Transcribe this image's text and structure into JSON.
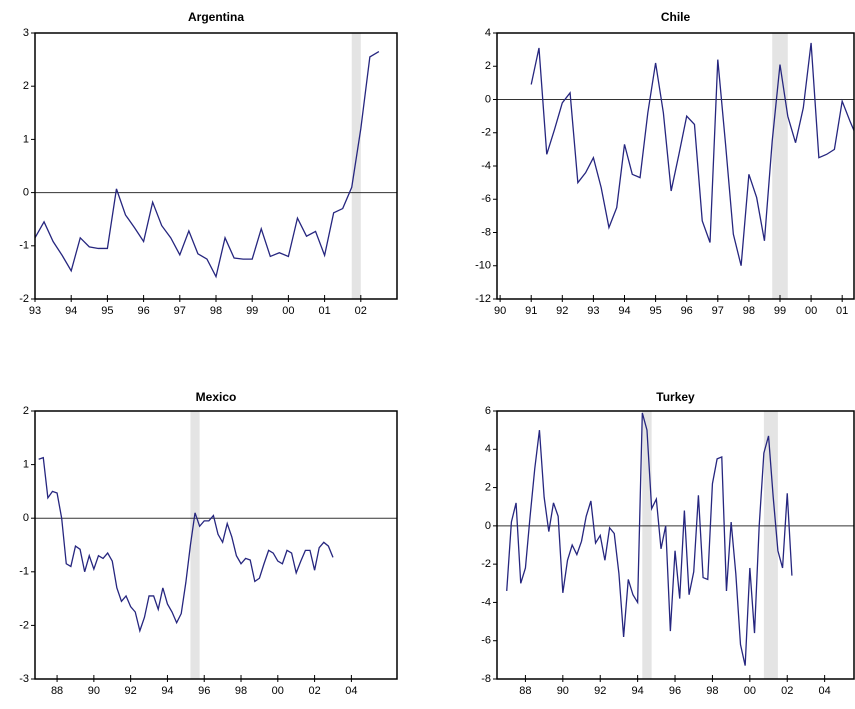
{
  "chart_data": [
    {
      "type": "line",
      "title": "Argentina",
      "color": "#26267f",
      "x": [
        1993,
        1993.25,
        1993.5,
        1993.75,
        1994,
        1994.25,
        1994.5,
        1994.75,
        1995,
        1995.25,
        1995.5,
        1995.75,
        1996,
        1996.25,
        1996.5,
        1996.75,
        1997,
        1997.25,
        1997.5,
        1997.75,
        1998,
        1998.25,
        1998.5,
        1998.75,
        1999,
        1999.25,
        1999.5,
        1999.75,
        2000,
        2000.25,
        2000.5,
        2000.75,
        2001,
        2001.25,
        2001.5,
        2001.75,
        2002,
        2002.25,
        2002.5
      ],
      "values": [
        -0.85,
        -0.55,
        -0.92,
        -1.18,
        -1.47,
        -0.85,
        -1.02,
        -1.05,
        -1.05,
        0.07,
        -0.42,
        -0.66,
        -0.92,
        -0.18,
        -0.62,
        -0.85,
        -1.17,
        -0.72,
        -1.15,
        -1.25,
        -1.58,
        -0.85,
        -1.23,
        -1.25,
        -1.25,
        -0.68,
        -1.2,
        -1.13,
        -1.2,
        -0.48,
        -0.82,
        -0.73,
        -1.18,
        -0.38,
        -0.3,
        0.1,
        1.2,
        2.55,
        2.65
      ],
      "xlim": [
        1993,
        2003
      ],
      "ylim": [
        -2,
        3
      ],
      "yticks": [
        -2,
        -1,
        0,
        1,
        2,
        3
      ],
      "xticks": [
        {
          "value": 1993,
          "label": "93"
        },
        {
          "value": 1994,
          "label": "94"
        },
        {
          "value": 1995,
          "label": "95"
        },
        {
          "value": 1996,
          "label": "96"
        },
        {
          "value": 1997,
          "label": "97"
        },
        {
          "value": 1998,
          "label": "98"
        },
        {
          "value": 1999,
          "label": "99"
        },
        {
          "value": 2000,
          "label": "00"
        },
        {
          "value": 2001,
          "label": "01"
        },
        {
          "value": 2002,
          "label": "02"
        }
      ],
      "hline": 0,
      "shaded_x": [
        [
          2001.75,
          2002.0
        ]
      ]
    },
    {
      "type": "line",
      "title": "Chile",
      "color": "#26267f",
      "x": [
        1991,
        1991.25,
        1991.5,
        1991.75,
        1992,
        1992.25,
        1992.5,
        1992.75,
        1993,
        1993.25,
        1993.5,
        1993.75,
        1994,
        1994.25,
        1994.5,
        1994.75,
        1995,
        1995.25,
        1995.5,
        1995.75,
        1996,
        1996.25,
        1996.5,
        1996.75,
        1997,
        1997.25,
        1997.5,
        1997.75,
        1998,
        1998.25,
        1998.5,
        1998.75,
        1999,
        1999.25,
        1999.5,
        1999.75,
        2000,
        2000.25,
        2000.5,
        2000.75,
        2001,
        2001.25,
        2001.5
      ],
      "values": [
        0.9,
        3.1,
        -3.3,
        -1.8,
        -0.2,
        0.4,
        -5.0,
        -4.4,
        -3.5,
        -5.3,
        -7.7,
        -6.5,
        -2.7,
        -4.5,
        -4.7,
        -0.8,
        2.2,
        -0.8,
        -5.5,
        -3.3,
        -1.0,
        -1.5,
        -7.3,
        -8.6,
        2.4,
        -2.7,
        -8.1,
        -10.0,
        -4.5,
        -5.9,
        -8.5,
        -2.5,
        2.1,
        -1.0,
        -2.6,
        -0.5,
        3.4,
        -3.5,
        -3.3,
        -3.0,
        -0.1,
        -1.3,
        -2.4
      ],
      "xlim": [
        1989.9,
        2001.38
      ],
      "ylim": [
        -12,
        4
      ],
      "yticks": [
        -12,
        -10,
        -8,
        -6,
        -4,
        -2,
        0,
        2,
        4
      ],
      "xticks": [
        {
          "value": 1990,
          "label": "90"
        },
        {
          "value": 1991,
          "label": "91"
        },
        {
          "value": 1992,
          "label": "92"
        },
        {
          "value": 1993,
          "label": "93"
        },
        {
          "value": 1994,
          "label": "94"
        },
        {
          "value": 1995,
          "label": "95"
        },
        {
          "value": 1996,
          "label": "96"
        },
        {
          "value": 1997,
          "label": "97"
        },
        {
          "value": 1998,
          "label": "98"
        },
        {
          "value": 1999,
          "label": "99"
        },
        {
          "value": 2000,
          "label": "00"
        },
        {
          "value": 2001,
          "label": "01"
        }
      ],
      "hline": 0,
      "shaded_x": [
        [
          1998.75,
          1999.25
        ]
      ]
    },
    {
      "type": "line",
      "title": "Mexico",
      "color": "#26267f",
      "x": [
        1987,
        1987.25,
        1987.5,
        1987.75,
        1988,
        1988.25,
        1988.5,
        1988.75,
        1989,
        1989.25,
        1989.5,
        1989.75,
        1990,
        1990.25,
        1990.5,
        1990.75,
        1991,
        1991.25,
        1991.5,
        1991.75,
        1992,
        1992.25,
        1992.5,
        1992.75,
        1993,
        1993.25,
        1993.5,
        1993.75,
        1994,
        1994.25,
        1994.5,
        1994.75,
        1995,
        1995.25,
        1995.5,
        1995.75,
        1996,
        1996.25,
        1996.5,
        1996.75,
        1997,
        1997.25,
        1997.5,
        1997.75,
        1998,
        1998.25,
        1998.5,
        1998.75,
        1999,
        1999.25,
        1999.5,
        1999.75,
        2000,
        2000.25,
        2000.5,
        2000.75,
        2001,
        2001.25,
        2001.5,
        2001.75,
        2002,
        2002.25,
        2002.5,
        2002.75,
        2003
      ],
      "values": [
        1.1,
        1.13,
        0.38,
        0.5,
        0.47,
        0.0,
        -0.85,
        -0.9,
        -0.52,
        -0.58,
        -1.0,
        -0.7,
        -0.95,
        -0.7,
        -0.75,
        -0.65,
        -0.8,
        -1.3,
        -1.55,
        -1.45,
        -1.65,
        -1.75,
        -2.1,
        -1.85,
        -1.45,
        -1.45,
        -1.7,
        -1.3,
        -1.6,
        -1.75,
        -1.95,
        -1.78,
        -1.2,
        -0.5,
        0.1,
        -0.15,
        -0.05,
        -0.05,
        0.05,
        -0.3,
        -0.45,
        -0.1,
        -0.35,
        -0.7,
        -0.85,
        -0.75,
        -0.78,
        -1.18,
        -1.12,
        -0.85,
        -0.6,
        -0.65,
        -0.8,
        -0.85,
        -0.6,
        -0.65,
        -1.02,
        -0.8,
        -0.6,
        -0.6,
        -0.97,
        -0.55,
        -0.45,
        -0.52,
        -0.73
      ],
      "xlim": [
        1986.8,
        2006.48
      ],
      "ylim": [
        -3,
        2
      ],
      "yticks": [
        -3,
        -2,
        -1,
        0,
        1,
        2
      ],
      "xticks": [
        {
          "value": 1988,
          "label": "88"
        },
        {
          "value": 1990,
          "label": "90"
        },
        {
          "value": 1992,
          "label": "92"
        },
        {
          "value": 1994,
          "label": "94"
        },
        {
          "value": 1996,
          "label": "96"
        },
        {
          "value": 1998,
          "label": "98"
        },
        {
          "value": 2000,
          "label": "00"
        },
        {
          "value": 2002,
          "label": "02"
        },
        {
          "value": 2004,
          "label": "04"
        }
      ],
      "hline": 0,
      "shaded_x": [
        [
          1995.25,
          1995.75
        ]
      ]
    },
    {
      "type": "line",
      "title": "Turkey",
      "color": "#26267f",
      "x": [
        1987,
        1987.25,
        1987.5,
        1987.75,
        1988,
        1988.25,
        1988.5,
        1988.75,
        1989,
        1989.25,
        1989.5,
        1989.75,
        1990,
        1990.25,
        1990.5,
        1990.75,
        1991,
        1991.25,
        1991.5,
        1991.75,
        1992,
        1992.25,
        1992.5,
        1992.75,
        1993,
        1993.25,
        1993.5,
        1993.75,
        1994,
        1994.25,
        1994.5,
        1994.75,
        1995,
        1995.25,
        1995.5,
        1995.75,
        1996,
        1996.25,
        1996.5,
        1996.75,
        1997,
        1997.25,
        1997.5,
        1997.75,
        1998,
        1998.25,
        1998.5,
        1998.75,
        1999,
        1999.25,
        1999.5,
        1999.75,
        2000,
        2000.25,
        2000.5,
        2000.75,
        2001,
        2001.25,
        2001.5,
        2001.75,
        2002,
        2002.25
      ],
      "values": [
        -3.4,
        0.2,
        1.2,
        -3.0,
        -2.2,
        0.5,
        3.0,
        5.0,
        1.5,
        -0.3,
        1.2,
        0.5,
        -3.5,
        -1.8,
        -1.0,
        -1.5,
        -0.8,
        0.5,
        1.3,
        -0.9,
        -0.5,
        -1.8,
        -0.1,
        -0.4,
        -2.5,
        -5.8,
        -2.8,
        -3.6,
        -4.0,
        5.9,
        5.0,
        0.9,
        1.4,
        -1.2,
        0.0,
        -5.5,
        -1.3,
        -3.8,
        0.8,
        -3.6,
        -2.4,
        1.6,
        -2.7,
        -2.8,
        2.2,
        3.5,
        3.6,
        -3.4,
        0.2,
        -2.5,
        -6.2,
        -7.3,
        -2.2,
        -5.6,
        0.0,
        3.8,
        4.7,
        1.5,
        -1.3,
        -2.2,
        1.7,
        -2.6
      ],
      "xlim": [
        1986.48,
        2005.57
      ],
      "ylim": [
        -8,
        6
      ],
      "yticks": [
        -8,
        -6,
        -4,
        -2,
        0,
        2,
        4,
        6
      ],
      "xticks": [
        {
          "value": 1988,
          "label": "88"
        },
        {
          "value": 1990,
          "label": "90"
        },
        {
          "value": 1992,
          "label": "92"
        },
        {
          "value": 1994,
          "label": "94"
        },
        {
          "value": 1996,
          "label": "96"
        },
        {
          "value": 1998,
          "label": "98"
        },
        {
          "value": 2000,
          "label": "00"
        },
        {
          "value": 2002,
          "label": "02"
        },
        {
          "value": 2004,
          "label": "04"
        }
      ],
      "hline": 0,
      "shaded_x": [
        [
          1994.25,
          1994.75
        ],
        [
          2000.75,
          2001.5
        ]
      ]
    }
  ]
}
